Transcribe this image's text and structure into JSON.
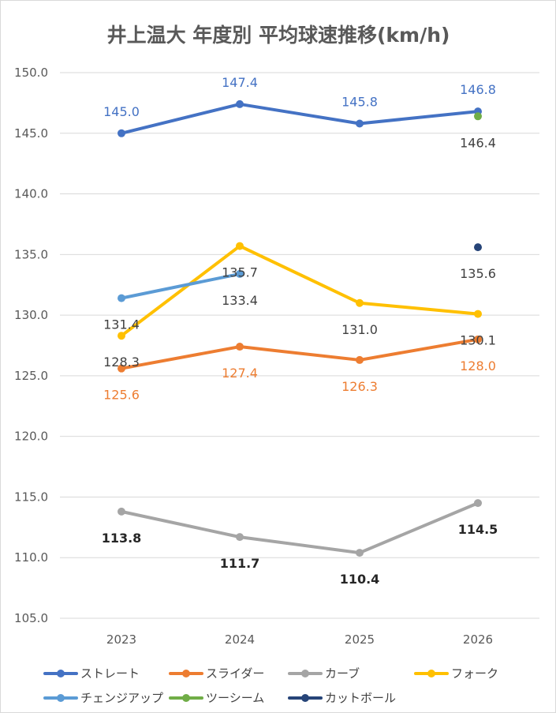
{
  "chart_data": {
    "type": "line",
    "title": "井上温大 年度別 平均球速推移(km/h)",
    "xlabel": "",
    "ylabel": "",
    "categories": [
      "2023",
      "2024",
      "2025",
      "2026"
    ],
    "ylim": [
      105,
      150
    ],
    "yticks": [
      "105.0",
      "110.0",
      "115.0",
      "120.0",
      "125.0",
      "130.0",
      "135.0",
      "140.0",
      "145.0",
      "150.0"
    ],
    "grid": true,
    "legend_position": "bottom",
    "series": [
      {
        "name": "ストレート",
        "color": "#4472C4",
        "values": [
          145.0,
          147.4,
          145.8,
          146.8
        ],
        "labels": [
          "145.0",
          "147.4",
          "145.8",
          "146.8"
        ],
        "label_pos": [
          "above",
          "above",
          "above",
          "above"
        ],
        "label_color": "#4472C4",
        "label_bold": false
      },
      {
        "name": "スライダー",
        "color": "#ED7D31",
        "values": [
          125.6,
          127.4,
          126.3,
          128.0
        ],
        "labels": [
          "125.6",
          "127.4",
          "126.3",
          "128.0"
        ],
        "label_pos": [
          "below",
          "below",
          "below",
          "below"
        ],
        "label_color": "#ED7D31",
        "label_bold": false
      },
      {
        "name": "カーブ",
        "color": "#A5A5A5",
        "values": [
          113.8,
          111.7,
          110.4,
          114.5
        ],
        "labels": [
          "113.8",
          "111.7",
          "110.4",
          "114.5"
        ],
        "label_pos": [
          "below",
          "below",
          "below",
          "below"
        ],
        "label_color": "#262626",
        "label_bold": true
      },
      {
        "name": "フォーク",
        "color": "#FFC000",
        "values": [
          128.3,
          135.7,
          131.0,
          130.1
        ],
        "labels": [
          "128.3",
          "135.7",
          "131.0",
          "130.1"
        ],
        "label_pos": [
          "below",
          "below",
          "below",
          "below"
        ],
        "label_color": "#404040",
        "label_bold": false
      },
      {
        "name": "チェンジアップ",
        "color": "#5B9BD5",
        "values": [
          131.4,
          133.4,
          null,
          null
        ],
        "labels": [
          "131.4",
          "133.4",
          "",
          ""
        ],
        "label_pos": [
          "below",
          "below",
          "below",
          "below"
        ],
        "label_color": "#404040",
        "label_bold": false
      },
      {
        "name": "ツーシーム",
        "color": "#70AD47",
        "values": [
          null,
          null,
          null,
          146.4
        ],
        "labels": [
          "",
          "",
          "",
          "146.4"
        ],
        "label_pos": [
          "below",
          "below",
          "below",
          "below"
        ],
        "label_color": "#404040",
        "label_bold": false
      },
      {
        "name": "カットボール",
        "color": "#264478",
        "values": [
          null,
          null,
          null,
          135.6
        ],
        "labels": [
          "",
          "",
          "",
          "135.6"
        ],
        "label_pos": [
          "below",
          "below",
          "below",
          "below"
        ],
        "label_color": "#404040",
        "label_bold": false
      }
    ]
  }
}
